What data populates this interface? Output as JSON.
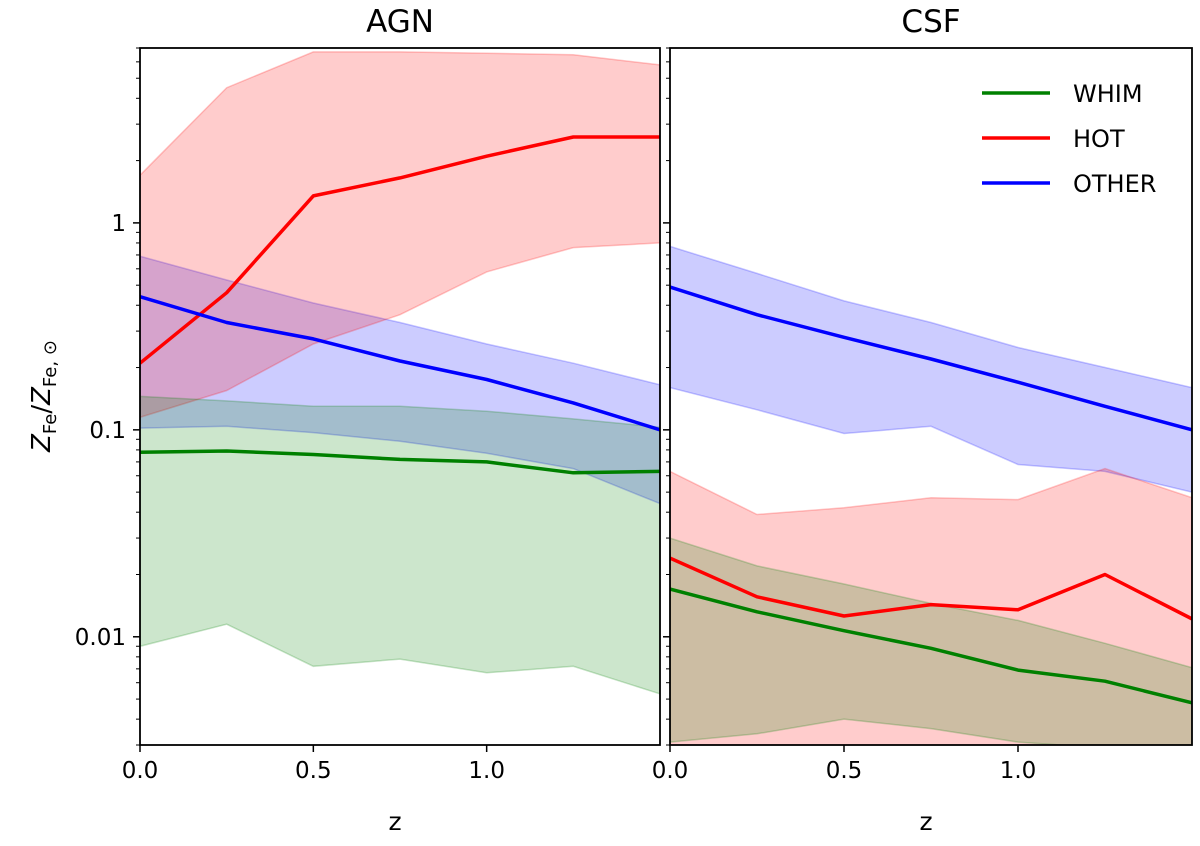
{
  "chart_data": [
    {
      "type": "area",
      "title": "AGN",
      "xlabel": "z",
      "ylabel": "Z_Fe / Z_Fe,⊙",
      "yscale": "log",
      "xlim": [
        0,
        1.5
      ],
      "ylim": [
        0.003,
        7
      ],
      "x_ticks": [
        0,
        0.5,
        1.0
      ],
      "x_tick_labels": [
        "0.0",
        "0.5",
        "1.0"
      ],
      "y_ticks": [
        0.01,
        0.1,
        1
      ],
      "y_tick_labels": [
        "0.01",
        "0.1",
        "1"
      ],
      "x": [
        0,
        0.25,
        0.5,
        0.75,
        1.0,
        1.25,
        1.5
      ],
      "series": [
        {
          "name": "WHIM",
          "color": "#008000",
          "values": [
            0.078,
            0.079,
            0.076,
            0.072,
            0.07,
            0.062,
            0.063
          ],
          "lower": [
            0.009,
            0.0115,
            0.0072,
            0.0078,
            0.0067,
            0.0072,
            0.0053
          ],
          "upper": [
            0.145,
            0.138,
            0.13,
            0.13,
            0.123,
            0.113,
            0.103
          ]
        },
        {
          "name": "HOT",
          "color": "#ff0000",
          "values": [
            0.21,
            0.46,
            1.35,
            1.65,
            2.1,
            2.6,
            2.6
          ],
          "lower": [
            0.115,
            0.155,
            0.26,
            0.36,
            0.58,
            0.76,
            0.8
          ],
          "upper": [
            1.7,
            4.5,
            6.7,
            6.7,
            6.6,
            6.5,
            5.8
          ]
        },
        {
          "name": "OTHER",
          "color": "#0000ff",
          "values": [
            0.44,
            0.33,
            0.275,
            0.215,
            0.175,
            0.135,
            0.1
          ],
          "lower": [
            0.102,
            0.104,
            0.097,
            0.088,
            0.077,
            0.065,
            0.044
          ],
          "upper": [
            0.69,
            0.53,
            0.41,
            0.33,
            0.26,
            0.21,
            0.165
          ]
        }
      ]
    },
    {
      "type": "area",
      "title": "CSF",
      "xlabel": "z",
      "yscale": "log",
      "xlim": [
        0,
        1.5
      ],
      "ylim": [
        0.003,
        7
      ],
      "x_ticks": [
        0,
        0.5,
        1.0
      ],
      "x_tick_labels": [
        "0.0",
        "0.5",
        "1.0"
      ],
      "legend_position": "top-right",
      "x": [
        0,
        0.25,
        0.5,
        0.75,
        1.0,
        1.25,
        1.5
      ],
      "series": [
        {
          "name": "WHIM",
          "color": "#008000",
          "values": [
            0.017,
            0.0132,
            0.0107,
            0.0088,
            0.0069,
            0.0061,
            0.0048
          ],
          "lower": [
            0.0031,
            0.0034,
            0.004,
            0.0036,
            0.0031,
            0.0029,
            0.0027
          ],
          "upper": [
            0.03,
            0.022,
            0.018,
            0.0145,
            0.012,
            0.0093,
            0.0071
          ]
        },
        {
          "name": "HOT",
          "color": "#ff0000",
          "values": [
            0.024,
            0.0156,
            0.0126,
            0.0143,
            0.0135,
            0.02,
            0.0122
          ],
          "lower": [
            0.0027,
            0.0026,
            0.0026,
            0.0026,
            0.0026,
            0.0026,
            0.0026
          ],
          "upper": [
            0.063,
            0.039,
            0.042,
            0.047,
            0.046,
            0.065,
            0.047
          ]
        },
        {
          "name": "OTHER",
          "color": "#0000ff",
          "values": [
            0.49,
            0.36,
            0.28,
            0.22,
            0.17,
            0.13,
            0.1
          ],
          "lower": [
            0.16,
            0.125,
            0.096,
            0.104,
            0.068,
            0.063,
            0.05
          ],
          "upper": [
            0.77,
            0.57,
            0.42,
            0.33,
            0.25,
            0.2,
            0.16
          ]
        }
      ]
    }
  ]
}
